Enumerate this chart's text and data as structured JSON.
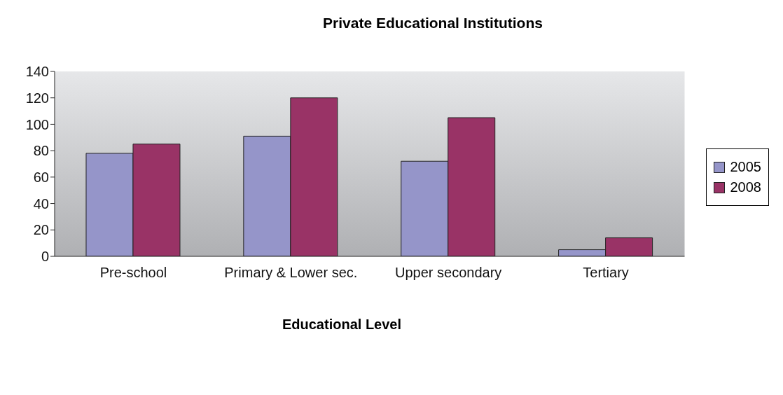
{
  "chart_data": {
    "type": "bar",
    "title": "Private Educational Institutions",
    "xlabel": "Educational Level",
    "categories": [
      "Pre-school",
      "Primary & Lower sec.",
      "Upper secondary",
      "Tertiary"
    ],
    "series": [
      {
        "name": "2005",
        "color": "#9595c9",
        "values": [
          78,
          91,
          72,
          5
        ]
      },
      {
        "name": "2008",
        "color": "#993366",
        "values": [
          85,
          120,
          105,
          14
        ]
      }
    ],
    "ylim": [
      0,
      140
    ],
    "yticks": [
      0,
      20,
      40,
      60,
      80,
      100,
      120,
      140
    ],
    "grid": false,
    "legend": "right"
  }
}
